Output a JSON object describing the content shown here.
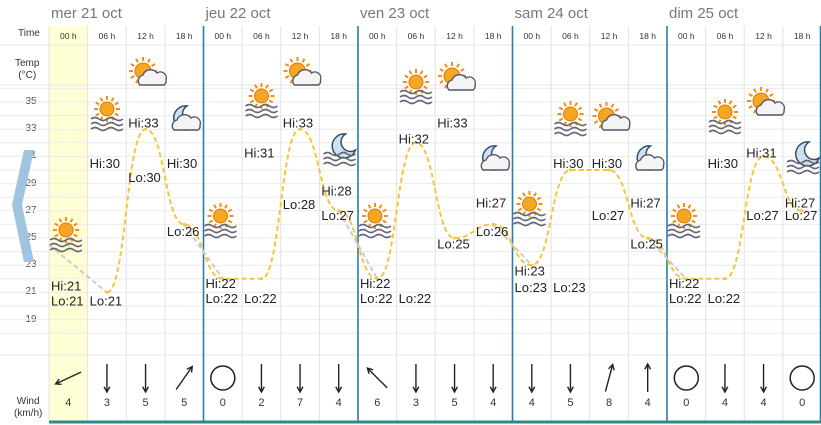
{
  "labels": {
    "time": "Time",
    "temp_line1": "Temp",
    "temp_line2": "(°C)",
    "wind_line1": "Wind",
    "wind_line2": "(km/h)"
  },
  "y_axis": {
    "ticks": [
      35,
      33,
      31,
      29,
      27,
      25,
      23,
      21,
      19
    ],
    "range": [
      17,
      37
    ]
  },
  "colors": {
    "today_bg": "#ffffd6",
    "temp_line": "#f5c542",
    "past_line": "#cccccc",
    "day_sep": "#2b7cae",
    "left_arrow": "#9ec4e0"
  },
  "days": [
    {
      "label": "mer 21 oct",
      "today": true,
      "slots": [
        {
          "time": "00 h",
          "temp": 24.5,
          "icon": "sun-fog-icon",
          "wind_dir": 245,
          "wind": "4"
        },
        {
          "time": "06 h",
          "temp": 21,
          "icon": "sun-fog-icon",
          "wind_dir": 180,
          "wind": "3"
        },
        {
          "time": "12 h",
          "temp": 33,
          "icon": "sun-cloud-icon",
          "wind_dir": 180,
          "wind": "5"
        },
        {
          "time": "18 h",
          "temp": 26,
          "icon": "moon-cloud-icon",
          "wind_dir": 35,
          "wind": "5"
        }
      ],
      "hilo": [
        {
          "text": "Hi:21",
          "slot": 0,
          "temp": 21.5
        },
        {
          "text": "Lo:21",
          "slot": 0,
          "temp": 20.4
        },
        {
          "text": "Lo:21",
          "slot": 1,
          "temp": 20.4
        },
        {
          "text": "Hi:30",
          "slot": 1,
          "temp": 30.5
        },
        {
          "text": "Hi:33",
          "slot": 2,
          "temp": 33.5
        },
        {
          "text": "Lo:30",
          "slot": 2,
          "temp": 29.5
        },
        {
          "text": "Hi:30",
          "slot": 3,
          "temp": 30.5
        },
        {
          "text": "Lo:26",
          "slot": 3,
          "temp": 25.5
        }
      ]
    },
    {
      "label": "jeu 22 oct",
      "today": false,
      "slots": [
        {
          "time": "00 h",
          "temp": 22,
          "icon": "sun-fog-icon",
          "wind_dir": null,
          "wind": "0"
        },
        {
          "time": "06 h",
          "temp": 22,
          "icon": "sun-fog-icon",
          "wind_dir": 180,
          "wind": "2"
        },
        {
          "time": "12 h",
          "temp": 33,
          "icon": "sun-cloud-icon",
          "wind_dir": 180,
          "wind": "7"
        },
        {
          "time": "18 h",
          "temp": 27,
          "icon": "moon-fog-icon",
          "wind_dir": 180,
          "wind": "4"
        }
      ],
      "hilo": [
        {
          "text": "Hi:22",
          "slot": 0,
          "temp": 21.7
        },
        {
          "text": "Lo:22",
          "slot": 0,
          "temp": 20.6
        },
        {
          "text": "Lo:22",
          "slot": 1,
          "temp": 20.6
        },
        {
          "text": "Hi:31",
          "slot": 1,
          "temp": 31.3
        },
        {
          "text": "Hi:33",
          "slot": 2,
          "temp": 33.5
        },
        {
          "text": "Lo:28",
          "slot": 2,
          "temp": 27.5
        },
        {
          "text": "Hi:28",
          "slot": 3,
          "temp": 28.5
        },
        {
          "text": "Lo:27",
          "slot": 3,
          "temp": 26.7
        }
      ]
    },
    {
      "label": "ven 23 oct",
      "today": false,
      "slots": [
        {
          "time": "00 h",
          "temp": 22,
          "icon": "sun-fog-icon",
          "wind_dir": 315,
          "wind": "6"
        },
        {
          "time": "06 h",
          "temp": 32,
          "icon": "sun-fog-icon",
          "wind_dir": 180,
          "wind": "3"
        },
        {
          "time": "12 h",
          "temp": 25,
          "icon": "sun-cloud-icon",
          "wind_dir": 180,
          "wind": "5"
        },
        {
          "time": "18 h",
          "temp": 26,
          "icon": "moon-cloud-icon",
          "wind_dir": 180,
          "wind": "4"
        }
      ],
      "hilo": [
        {
          "text": "Hi:22",
          "slot": 0,
          "temp": 21.7
        },
        {
          "text": "Lo:22",
          "slot": 0,
          "temp": 20.6
        },
        {
          "text": "Lo:22",
          "slot": 1,
          "temp": 20.6
        },
        {
          "text": "Hi:32",
          "slot": 1,
          "temp": 32.3
        },
        {
          "text": "Hi:33",
          "slot": 2,
          "temp": 33.5
        },
        {
          "text": "Lo:25",
          "slot": 2,
          "temp": 24.6
        },
        {
          "text": "Hi:27",
          "slot": 3,
          "temp": 27.6
        },
        {
          "text": "Lo:26",
          "slot": 3,
          "temp": 25.5
        }
      ]
    },
    {
      "label": "sam 24 oct",
      "today": false,
      "slots": [
        {
          "time": "00 h",
          "temp": 23,
          "icon": "sun-fog-icon",
          "wind_dir": 180,
          "wind": "4"
        },
        {
          "time": "06 h",
          "temp": 30,
          "icon": "sun-fog-icon",
          "wind_dir": 180,
          "wind": "5"
        },
        {
          "time": "12 h",
          "temp": 30,
          "icon": "sun-cloud-icon",
          "wind_dir": 15,
          "wind": "8"
        },
        {
          "time": "18 h",
          "temp": 25,
          "icon": "moon-cloud-icon",
          "wind_dir": 0,
          "wind": "4"
        }
      ],
      "hilo": [
        {
          "text": "Hi:23",
          "slot": 0,
          "temp": 22.6
        },
        {
          "text": "Lo:23",
          "slot": 0,
          "temp": 21.4
        },
        {
          "text": "Lo:23",
          "slot": 1,
          "temp": 21.4
        },
        {
          "text": "Hi:30",
          "slot": 1,
          "temp": 30.5
        },
        {
          "text": "Hi:30",
          "slot": 2,
          "temp": 30.5
        },
        {
          "text": "Lo:27",
          "slot": 2,
          "temp": 26.7
        },
        {
          "text": "Hi:27",
          "slot": 3,
          "temp": 27.6
        },
        {
          "text": "Lo:25",
          "slot": 3,
          "temp": 24.6
        }
      ]
    },
    {
      "label": "dim 25 oct",
      "today": false,
      "slots": [
        {
          "time": "00 h",
          "temp": 22,
          "icon": "sun-fog-icon",
          "wind_dir": null,
          "wind": "0"
        },
        {
          "time": "06 h",
          "temp": 22,
          "icon": "sun-fog-icon",
          "wind_dir": 180,
          "wind": "4"
        },
        {
          "time": "12 h",
          "temp": 31,
          "icon": "sun-cloud-icon",
          "wind_dir": 180,
          "wind": "4"
        },
        {
          "time": "18 h",
          "temp": 27,
          "icon": "moon-fog-icon",
          "wind_dir": null,
          "wind": "0"
        }
      ],
      "hilo": [
        {
          "text": "Hi:22",
          "slot": 0,
          "temp": 21.7
        },
        {
          "text": "Lo:22",
          "slot": 0,
          "temp": 20.6
        },
        {
          "text": "Lo:22",
          "slot": 1,
          "temp": 20.6
        },
        {
          "text": "Hi:30",
          "slot": 1,
          "temp": 30.5
        },
        {
          "text": "Hi:31",
          "slot": 2,
          "temp": 31.3
        },
        {
          "text": "Lo:27",
          "slot": 2,
          "temp": 26.7
        },
        {
          "text": "Hi:27",
          "slot": 3,
          "temp": 27.6
        },
        {
          "text": "Lo:27",
          "slot": 3,
          "temp": 26.7
        }
      ]
    }
  ],
  "chart_data": {
    "type": "line",
    "title": "",
    "xlabel": "Time",
    "ylabel": "Temp (°C)",
    "ylim": [
      17,
      37
    ],
    "categories": [
      "mer 21 oct 00 h",
      "mer 21 oct 06 h",
      "mer 21 oct 12 h",
      "mer 21 oct 18 h",
      "jeu 22 oct 00 h",
      "jeu 22 oct 06 h",
      "jeu 22 oct 12 h",
      "jeu 22 oct 18 h",
      "ven 23 oct 00 h",
      "ven 23 oct 06 h",
      "ven 23 oct 12 h",
      "ven 23 oct 18 h",
      "sam 24 oct 00 h",
      "sam 24 oct 06 h",
      "sam 24 oct 12 h",
      "sam 24 oct 18 h",
      "dim 25 oct 00 h",
      "dim 25 oct 06 h",
      "dim 25 oct 12 h",
      "dim 25 oct 18 h"
    ],
    "series": [
      {
        "name": "",
        "values": [
          24.5,
          21,
          33,
          26,
          22,
          22,
          33,
          27,
          22,
          32,
          25,
          26,
          23,
          30,
          30,
          25,
          22,
          22,
          31,
          27
        ]
      }
    ],
    "wind_kmh": [
      4,
      3,
      5,
      5,
      0,
      2,
      7,
      4,
      6,
      3,
      5,
      4,
      4,
      5,
      8,
      4,
      0,
      4,
      4,
      0
    ]
  }
}
